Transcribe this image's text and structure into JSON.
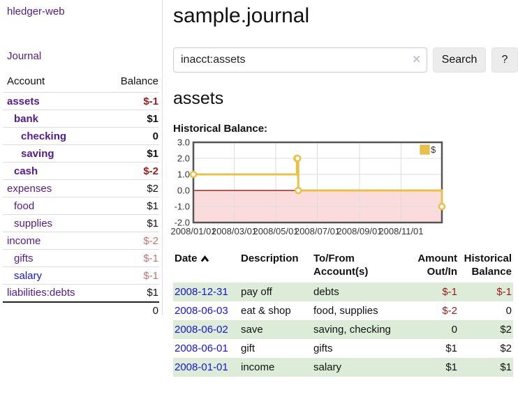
{
  "colors": {
    "link_purple": "#551a8b",
    "link_blue": "#1414e0",
    "negative_strong": "#9e1919",
    "negative_muted": "#c27474",
    "row_stripe_green": "#dcecd9",
    "chart_gold": "#e8c04a",
    "chart_negative_region": "#fbdcdc",
    "chart_zero_line": "#8b0000",
    "chart_border": "#555555"
  },
  "sidebar": {
    "brand": "hledger-web",
    "nav": [
      {
        "label": "Journal"
      }
    ],
    "accounts_table": {
      "headers": [
        "Account",
        "Balance"
      ],
      "rows": [
        {
          "account": "assets",
          "indent": 0,
          "bold": true,
          "link": "purple",
          "balance": "$-1",
          "balance_class": "neg"
        },
        {
          "account": "bank",
          "indent": 1,
          "bold": true,
          "link": "purple",
          "balance": "$1",
          "balance_class": ""
        },
        {
          "account": "checking",
          "indent": 2,
          "bold": true,
          "link": "purple",
          "balance": "0",
          "balance_class": ""
        },
        {
          "account": "saving",
          "indent": 2,
          "bold": true,
          "link": "purple",
          "balance": "$1",
          "balance_class": ""
        },
        {
          "account": "cash",
          "indent": 1,
          "bold": true,
          "link": "purple",
          "balance": "$-2",
          "balance_class": "neg"
        },
        {
          "account": "expenses",
          "indent": 0,
          "bold": false,
          "link": "purple",
          "balance": "$2",
          "balance_class": ""
        },
        {
          "account": "food",
          "indent": 1,
          "bold": false,
          "link": "purple",
          "balance": "$1",
          "balance_class": ""
        },
        {
          "account": "supplies",
          "indent": 1,
          "bold": false,
          "link": "purple",
          "balance": "$1",
          "balance_class": ""
        },
        {
          "account": "income",
          "indent": 0,
          "bold": false,
          "link": "purple",
          "balance": "$-2",
          "balance_class": "negmuted"
        },
        {
          "account": "gifts",
          "indent": 1,
          "bold": false,
          "link": "purple",
          "balance": "$-1",
          "balance_class": "negmuted"
        },
        {
          "account": "salary",
          "indent": 1,
          "bold": false,
          "link": "blue",
          "balance": "$-1",
          "balance_class": "negmuted"
        },
        {
          "account": "liabilities:debts",
          "indent": 0,
          "bold": false,
          "link": "purple",
          "balance": "$1",
          "balance_class": ""
        }
      ],
      "total": "0"
    }
  },
  "main": {
    "title": "sample.journal",
    "search": {
      "value": "inacct:assets",
      "clear_icon": "✕",
      "search_button": "Search",
      "help_button": "?"
    },
    "account_heading": "assets",
    "chart_label": "Historical Balance:"
  },
  "chart_data": {
    "type": "line",
    "step": true,
    "title": "Historical Balance:",
    "series": [
      {
        "name": "$",
        "color": "#e8c04a",
        "points": [
          [
            "2008-01-01",
            1
          ],
          [
            "2008-06-01",
            2
          ],
          [
            "2008-06-02",
            2
          ],
          [
            "2008-06-03",
            0
          ],
          [
            "2008-12-31",
            -1
          ]
        ]
      }
    ],
    "x_range": [
      "2008-01-01",
      "2008-12-31"
    ],
    "x_ticks": [
      "2008/01/01",
      "2008/03/01",
      "2008/05/01",
      "2008/07/01",
      "2008/09/01",
      "2008/11/01"
    ],
    "y_ticks": [
      3.0,
      2.0,
      1.0,
      0.0,
      -1.0,
      -2.0
    ],
    "ylim": [
      -2,
      3
    ],
    "grid": true,
    "legend": {
      "label": "$",
      "position": "top-right"
    }
  },
  "transactions_table": {
    "headers": [
      "Date",
      "Description",
      "To/From Account(s)",
      "Amount Out/In",
      "Historical Balance"
    ],
    "rows": [
      {
        "date": "2008-12-31",
        "description": "pay off",
        "accounts": "debts",
        "amount": "$-1",
        "balance": "$-1"
      },
      {
        "date": "2008-06-03",
        "description": "eat & shop",
        "accounts": "food, supplies",
        "amount": "$-2",
        "balance": "0"
      },
      {
        "date": "2008-06-02",
        "description": "save",
        "accounts": "saving, checking",
        "amount": "0",
        "balance": "$2"
      },
      {
        "date": "2008-06-01",
        "description": "gift",
        "accounts": "gifts",
        "amount": "$1",
        "balance": "$2"
      },
      {
        "date": "2008-01-01",
        "description": "income",
        "accounts": "salary",
        "amount": "$1",
        "balance": "$1"
      }
    ]
  }
}
